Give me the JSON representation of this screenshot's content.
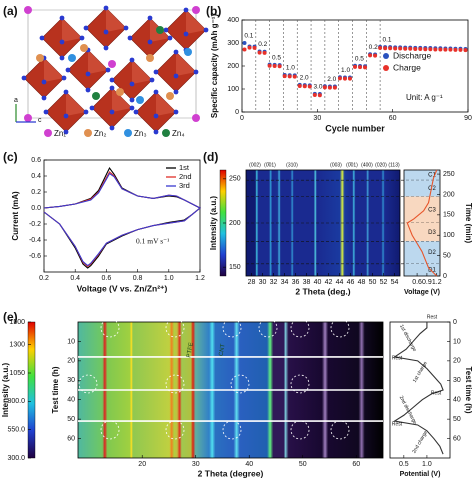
{
  "panel_labels": [
    "(a)",
    "(b)",
    "(c)",
    "(d)",
    "(e)"
  ],
  "structure": {
    "atoms": [
      "Zn₁",
      "Zn₂",
      "Zn₃",
      "Zn₄"
    ],
    "axes": [
      "a",
      "c"
    ]
  },
  "chart_data": [
    {
      "type": "scatter",
      "x_label": "Cycle number",
      "y_label": "Specific capacity (mAh g⁻¹)",
      "annotation": "Unit: A g⁻¹",
      "rate_labels": [
        "0.1",
        "0.2",
        "0.5",
        "1.0",
        "2.0",
        "3.0",
        "2.0",
        "1.0",
        "0.5",
        "0.2",
        "0.1"
      ],
      "x": [
        1,
        3,
        5,
        7,
        9,
        11,
        13,
        15,
        17,
        19,
        21,
        23,
        25,
        27,
        29,
        31,
        33,
        35,
        37,
        39,
        41,
        43,
        45,
        47,
        49,
        51,
        53,
        55,
        57,
        59,
        61,
        63,
        65,
        67,
        69,
        71,
        73,
        75,
        77,
        79,
        81,
        83,
        85,
        87,
        89
      ],
      "series": [
        {
          "name": "Discharge",
          "color": "#2a52be",
          "values": [
            300,
            285,
            284,
            263,
            262,
            206,
            205,
            204,
            161,
            160,
            159,
            118,
            117,
            116,
            79,
            78,
            112,
            111,
            111,
            151,
            150,
            150,
            201,
            200,
            199,
            251,
            250,
            283,
            282,
            282,
            281,
            281,
            280,
            280,
            279,
            279,
            278,
            278,
            277,
            277,
            276,
            276,
            275,
            275,
            274
          ]
        },
        {
          "name": "Charge",
          "color": "#e8312a",
          "values": [
            272,
            280,
            279,
            258,
            257,
            201,
            200,
            199,
            156,
            155,
            154,
            113,
            112,
            111,
            74,
            73,
            107,
            106,
            106,
            146,
            145,
            145,
            196,
            195,
            194,
            246,
            245,
            278,
            277,
            277,
            276,
            276,
            275,
            275,
            274,
            274,
            273,
            273,
            272,
            272,
            271,
            271,
            270,
            270,
            269
          ]
        }
      ],
      "xlim": [
        0,
        90
      ],
      "xticks": [
        0,
        30,
        60,
        90
      ],
      "ylim": [
        0,
        400
      ],
      "yticks": [
        0,
        100,
        200,
        300,
        400
      ],
      "vlines": [
        5.5,
        11,
        16.5,
        22,
        27.5,
        33,
        38.5,
        44,
        49.5,
        55
      ],
      "legend": "right"
    },
    {
      "type": "line",
      "x_label": "Voltage (V vs. Zn/Zn²⁺)",
      "y_label": "Current (mA)",
      "annotation": "0.1 mV s⁻¹",
      "x": [
        0.2,
        0.3,
        0.4,
        0.5,
        0.55,
        0.6,
        0.62,
        0.65,
        0.7,
        0.8,
        0.9,
        1.0,
        1.05,
        1.1,
        1.15,
        1.2,
        1.15,
        1.1,
        1.0,
        0.9,
        0.8,
        0.7,
        0.6,
        0.55,
        0.5,
        0.48,
        0.45,
        0.4,
        0.3,
        0.2
      ],
      "series": [
        {
          "name": "1st",
          "color": "#000000",
          "values": [
            0.0,
            0.02,
            0.05,
            0.12,
            0.22,
            0.42,
            0.5,
            0.42,
            0.25,
            0.15,
            0.12,
            0.15,
            0.14,
            0.1,
            0.05,
            0.0,
            -0.08,
            -0.15,
            -0.18,
            -0.22,
            -0.27,
            -0.35,
            -0.45,
            -0.6,
            -0.72,
            -0.75,
            -0.7,
            -0.5,
            -0.2,
            -0.05
          ]
        },
        {
          "name": "2nd",
          "color": "#e0302a",
          "values": [
            0.0,
            0.02,
            0.05,
            0.11,
            0.2,
            0.38,
            0.45,
            0.4,
            0.24,
            0.15,
            0.12,
            0.16,
            0.15,
            0.1,
            0.05,
            0.0,
            -0.08,
            -0.16,
            -0.19,
            -0.22,
            -0.27,
            -0.34,
            -0.44,
            -0.58,
            -0.7,
            -0.73,
            -0.68,
            -0.48,
            -0.2,
            -0.05
          ]
        },
        {
          "name": "3rd",
          "color": "#3a3ad0",
          "values": [
            0.0,
            0.02,
            0.05,
            0.1,
            0.19,
            0.36,
            0.43,
            0.39,
            0.24,
            0.15,
            0.12,
            0.16,
            0.15,
            0.1,
            0.05,
            0.0,
            -0.08,
            -0.16,
            -0.19,
            -0.22,
            -0.27,
            -0.34,
            -0.44,
            -0.57,
            -0.69,
            -0.72,
            -0.67,
            -0.48,
            -0.2,
            -0.05
          ]
        }
      ],
      "xlim": [
        0.2,
        1.2
      ],
      "xticks": [
        0.2,
        0.4,
        0.6,
        0.8,
        {
          "value": 1,
          "label": "1.0"
        },
        1.2
      ],
      "ylim": [
        -0.8,
        0.6
      ],
      "yticks": [
        -0.6,
        -0.4,
        -0.2,
        {
          "value": 0,
          "label": "0.0"
        },
        0.2,
        0.4,
        0.6
      ],
      "legend": "upper right"
    },
    {
      "type": "heatmap",
      "x_label": "2 Theta (deg.)",
      "colorbar_label": "Intensity (a.u.)",
      "peak_labels": [
        "(002)",
        "(0̄01)",
        "(310)",
        "(003)",
        "(0̄01)",
        "(400)",
        "(020)",
        "(113)"
      ],
      "xlim": [
        27,
        55
      ],
      "xticks": [
        28,
        30,
        32,
        34,
        36,
        38,
        40,
        42,
        44,
        46,
        48,
        50,
        52,
        54
      ],
      "colorbar_lim": [
        140,
        260
      ],
      "colorbar_ticks": [
        150,
        200,
        250
      ]
    },
    {
      "type": "profile",
      "x_label": "Voltage (V)",
      "y_label": "Time (min)",
      "x": [
        0,
        20,
        40,
        60,
        80,
        100,
        120,
        130,
        140,
        160,
        180,
        200,
        220,
        240,
        260
      ],
      "values": [
        1.2,
        0.95,
        0.85,
        0.75,
        0.6,
        0.45,
        0.35,
        0.3,
        0.5,
        0.8,
        0.95,
        1.0,
        1.05,
        1.1,
        1.2
      ],
      "color": "#e8552a",
      "ylim": [
        0,
        260
      ],
      "yticks": [
        0,
        50,
        100,
        150,
        200,
        250
      ],
      "xlim": [
        0.2,
        1.3
      ],
      "xticks": [
        0.6,
        0.9,
        1.2
      ],
      "phases": [
        {
          "label": "C1",
          "from": 235,
          "to": 260,
          "color": "#bcd8ee"
        },
        {
          "label": "C2",
          "from": 195,
          "to": 235,
          "color": "#bcd8ee"
        },
        {
          "label": "C3",
          "from": 130,
          "to": 195,
          "color": "#f8d8c0"
        },
        {
          "label": "D3",
          "from": 85,
          "to": 130,
          "color": "#f8d8c0"
        },
        {
          "label": "D2",
          "from": 30,
          "to": 85,
          "color": "#bcd8ee"
        },
        {
          "label": "D1",
          "from": 0,
          "to": 30,
          "color": "#bcd8ee"
        }
      ]
    },
    {
      "type": "heatmap",
      "x_label": "2 Theta (degree)",
      "y_label": "Test time (h)",
      "colorbar_label": "Intensity (a.u.)",
      "annotations": [
        "PTFE",
        "CNT"
      ],
      "inverted": true,
      "xlim": [
        8,
        65
      ],
      "xticks": [
        20,
        30,
        40,
        50,
        60
      ],
      "ylim": [
        0,
        70
      ],
      "yticks": [
        10,
        20,
        30,
        40,
        50,
        60
      ],
      "colorbar_lim": [
        300,
        1500
      ],
      "colorbar_ticks": [
        {
          "value": 300,
          "label": "300.0"
        },
        {
          "value": 550,
          "label": "550.0"
        },
        {
          "value": 800,
          "label": "800.0"
        },
        1050,
        1300,
        1500
      ],
      "rest_lines": [
        18,
        35,
        51
      ]
    },
    {
      "type": "profile",
      "x_label": "Potential (V)",
      "y_label": "Test time (h)",
      "inverted": true,
      "x": [
        0,
        3,
        6,
        10,
        14,
        18,
        20,
        24,
        28,
        32,
        35,
        37,
        40,
        44,
        48,
        51,
        53,
        56,
        60,
        64,
        68
      ],
      "values": [
        1.0,
        1.0,
        0.85,
        0.7,
        0.55,
        0.3,
        0.8,
        1.0,
        1.15,
        1.3,
        1.35,
        1.1,
        0.9,
        0.7,
        0.5,
        0.3,
        0.8,
        1.0,
        1.15,
        1.28,
        1.35
      ],
      "color": "#333333",
      "ylim": [
        0,
        70
      ],
      "yticks": [
        0,
        10,
        20,
        30,
        40,
        50,
        60
      ],
      "xlim": [
        0.2,
        1.5
      ],
      "xticks": [
        0.5,
        {
          "value": 1,
          "label": "1.0"
        }
      ],
      "stage_labels": [
        "Rest",
        "1st discharge",
        "Rest",
        "1st charge",
        "Rest",
        "2nd discharge",
        "Rest",
        "2nd charge"
      ]
    }
  ]
}
